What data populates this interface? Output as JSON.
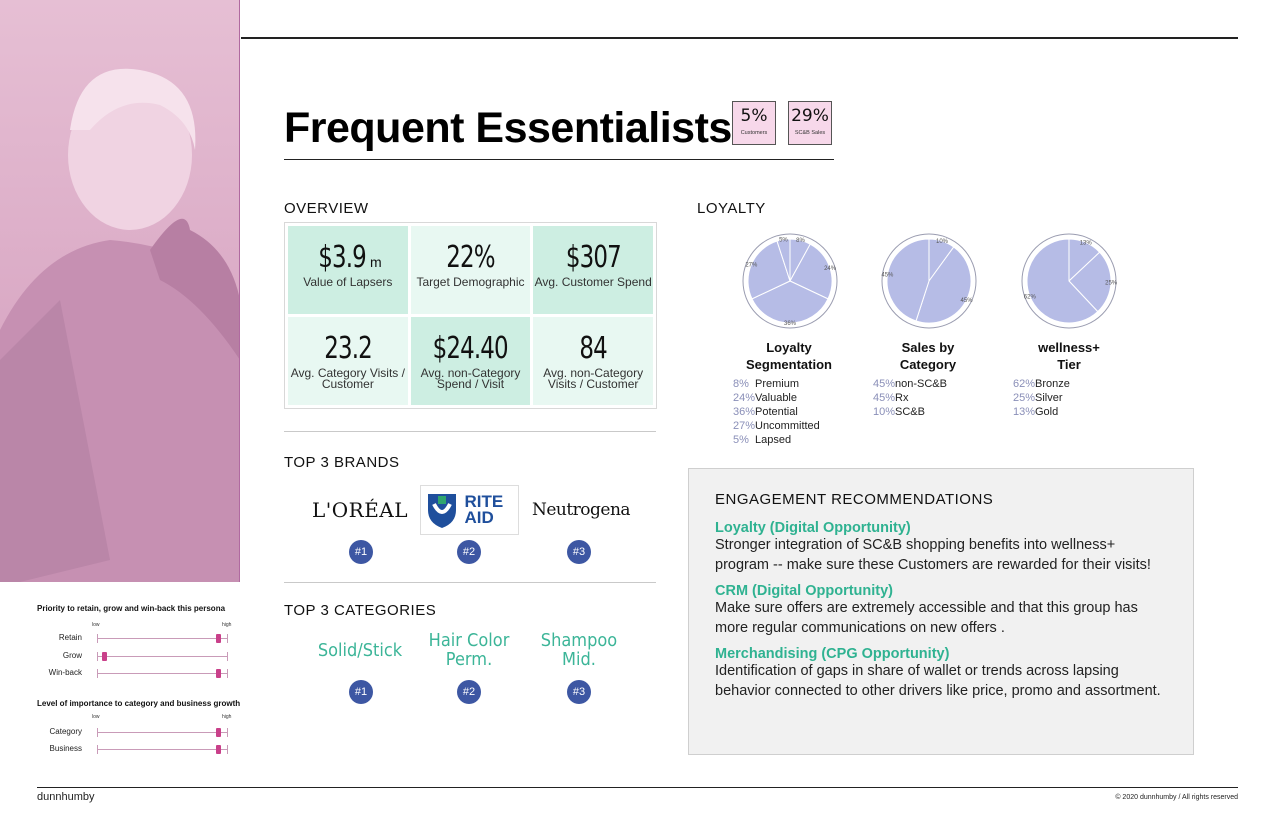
{
  "header": {
    "title": "Frequent Essentialists",
    "stats": [
      {
        "value": "5%",
        "label": "Customers"
      },
      {
        "value": "29%",
        "label": "SC&B Sales"
      }
    ]
  },
  "overview": {
    "heading": "OVERVIEW",
    "cells": [
      {
        "value": "$3.9",
        "unit": "m",
        "label": "Value of Lapsers"
      },
      {
        "value": "22%",
        "unit": "",
        "label": "Target Demographic"
      },
      {
        "value": "$307",
        "unit": "",
        "label": "Avg. Customer Spend"
      },
      {
        "value": "23.2",
        "unit": "",
        "label": "Avg. Category Visits / Customer"
      },
      {
        "value": "$24.40",
        "unit": "",
        "label": "Avg. non-Category Spend / Visit"
      },
      {
        "value": "84",
        "unit": "",
        "label": "Avg. non-Category Visits / Customer"
      }
    ]
  },
  "brands": {
    "heading": "TOP 3 BRANDS",
    "items": [
      {
        "name": "L'ORÉAL",
        "rank": "#1"
      },
      {
        "name": "RITE AID",
        "rank": "#2"
      },
      {
        "name": "Neutrogena",
        "rank": "#3"
      }
    ]
  },
  "categories": {
    "heading": "TOP 3 CATEGORIES",
    "items": [
      {
        "line1": "Solid/Stick",
        "line2": "",
        "rank": "#1"
      },
      {
        "line1": "Hair Color",
        "line2": "Perm.",
        "rank": "#2"
      },
      {
        "line1": "Shampoo",
        "line2": "Mid.",
        "rank": "#3"
      }
    ]
  },
  "loyalty": {
    "heading": "LOYALTY",
    "pie_color": "#b6bce6",
    "charts": [
      {
        "title_line1": "Loyalty",
        "title_line2": "Segmentation",
        "slices": [
          {
            "pct": "8%",
            "value": 8,
            "name": "Premium"
          },
          {
            "pct": "24%",
            "value": 24,
            "name": "Valuable"
          },
          {
            "pct": "36%",
            "value": 36,
            "name": "Potential"
          },
          {
            "pct": "27%",
            "value": 27,
            "name": "Uncommitted"
          },
          {
            "pct": "5%",
            "value": 5,
            "name": "Lapsed"
          }
        ]
      },
      {
        "title_line1": "Sales by",
        "title_line2": "Category",
        "slices": [
          {
            "pct": "10%",
            "value": 10,
            "name": "SC&B"
          },
          {
            "pct": "45%",
            "value": 45,
            "name": "non-SC&B"
          },
          {
            "pct": "45%",
            "value": 45,
            "name": "Rx"
          }
        ],
        "legend_order": [
          1,
          2,
          0
        ]
      },
      {
        "title_line1": "wellness+",
        "title_line2": "Tier",
        "slices": [
          {
            "pct": "13%",
            "value": 13,
            "name": "Gold"
          },
          {
            "pct": "25%",
            "value": 25,
            "name": "Silver"
          },
          {
            "pct": "62%",
            "value": 62,
            "name": "Bronze"
          }
        ],
        "legend_order": [
          2,
          1,
          0
        ]
      }
    ]
  },
  "engagement": {
    "heading": "ENGAGEMENT RECOMMENDATIONS",
    "items": [
      {
        "title": "Loyalty (Digital Opportunity)",
        "text": "Stronger integration of SC&B shopping benefits into wellness+ program -- make sure these Customers are rewarded for their visits!"
      },
      {
        "title": "CRM (Digital Opportunity)",
        "text": "Make sure offers are extremely accessible and that this group has more regular communications on new offers ."
      },
      {
        "title": "Merchandising (CPG Opportunity)",
        "text": "Identification of gaps in share of wallet or trends across lapsing behavior connected to other drivers like price, promo and assortment."
      }
    ]
  },
  "priority": {
    "title": "Priority to retain, grow and win-back this persona",
    "low": "low",
    "high": "high",
    "sliders": [
      {
        "label": "Retain",
        "level": 0.92
      },
      {
        "label": "Grow",
        "level": 0.05
      },
      {
        "label": "Win-back",
        "level": 0.92
      }
    ]
  },
  "importance": {
    "title": "Level of importance to category and business growth",
    "low": "low",
    "high": "high",
    "sliders": [
      {
        "label": "Category",
        "level": 0.92
      },
      {
        "label": "Business",
        "level": 0.92
      }
    ]
  },
  "footer": {
    "logo": "dunnhumby",
    "copyright": "© 2020 dunnhumby / All rights reserved"
  }
}
